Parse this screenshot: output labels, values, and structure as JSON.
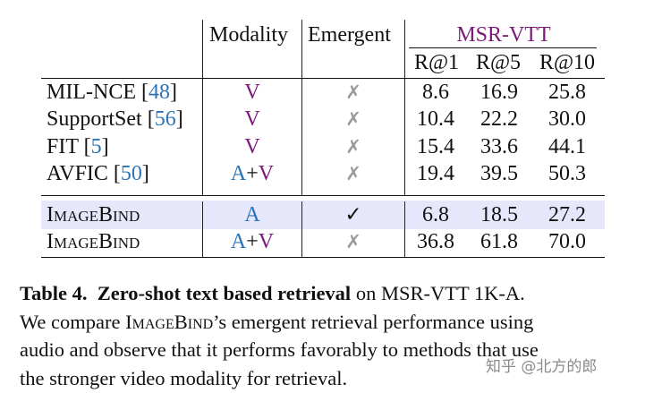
{
  "table": {
    "headers": {
      "modality": "Modality",
      "emergent": "Emergent",
      "dataset": "MSR-VTT",
      "metrics": [
        "R@1",
        "R@5",
        "R@10"
      ]
    },
    "rows": [
      {
        "method": "MIL-NCE",
        "cite": "48",
        "modality": [
          {
            "t": "V",
            "c": "V"
          }
        ],
        "emergent": "✗",
        "r1": "8.6",
        "r5": "16.9",
        "r10": "25.8"
      },
      {
        "method": "SupportSet",
        "cite": "56",
        "modality": [
          {
            "t": "V",
            "c": "V"
          }
        ],
        "emergent": "✗",
        "r1": "10.4",
        "r5": "22.2",
        "r10": "30.0"
      },
      {
        "method": "FIT",
        "cite": "5",
        "modality": [
          {
            "t": "V",
            "c": "V"
          }
        ],
        "emergent": "✗",
        "r1": "15.4",
        "r5": "33.6",
        "r10": "44.1"
      },
      {
        "method": "AVFIC",
        "cite": "50",
        "modality": [
          {
            "t": "A",
            "c": "A"
          },
          {
            "t": "+",
            "c": "plus"
          },
          {
            "t": "V",
            "c": "V"
          }
        ],
        "emergent": "✗",
        "r1": "19.4",
        "r5": "39.5",
        "r10": "50.3"
      },
      {
        "method": "ImageBind",
        "cite": "",
        "highlight": true,
        "modality": [
          {
            "t": "A",
            "c": "A"
          }
        ],
        "emergent": "✓",
        "r1": "6.8",
        "r5": "18.5",
        "r10": "27.2"
      },
      {
        "method": "ImageBind",
        "cite": "",
        "modality": [
          {
            "t": "A",
            "c": "A"
          },
          {
            "t": "+",
            "c": "plus"
          },
          {
            "t": "V",
            "c": "V"
          }
        ],
        "emergent": "✗",
        "r1": "36.8",
        "r5": "61.8",
        "r10": "70.0"
      }
    ],
    "highlight_color": "#e7e7fb"
  },
  "caption": {
    "label": "Table 4.",
    "bold_title": "Zero-shot text based retrieval",
    "line1_rest": " on MSR-VTT 1K-A.",
    "line2_pre": "We compare ",
    "line2_name": "ImageBind",
    "line2_post": "’s emergent retrieval performance using",
    "line3": "audio and observe that it performs favorably to methods that use",
    "line4": "the stronger video modality for retrieval."
  },
  "watermark": "知乎 @北方的郎",
  "colors": {
    "citation": "#2a74b6",
    "video": "#7b1a7b",
    "audio": "#2a74b6",
    "cross": "#999999"
  }
}
